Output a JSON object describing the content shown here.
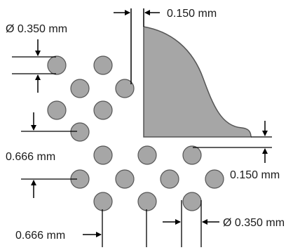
{
  "labels": {
    "gap_top": "0.150 mm",
    "diameter_top": "Ø 0.350 mm",
    "pitch_vertical": "0.666 mm",
    "gap_right": "0.150 mm",
    "pitch_horizontal": "0.666 mm",
    "diameter_bottom": "Ø 0.350 mm"
  },
  "colors": {
    "via_fill": "#a6a6a6",
    "via_stroke": "#555555",
    "shape_fill": "#a6a6a6",
    "line": "#000000"
  }
}
